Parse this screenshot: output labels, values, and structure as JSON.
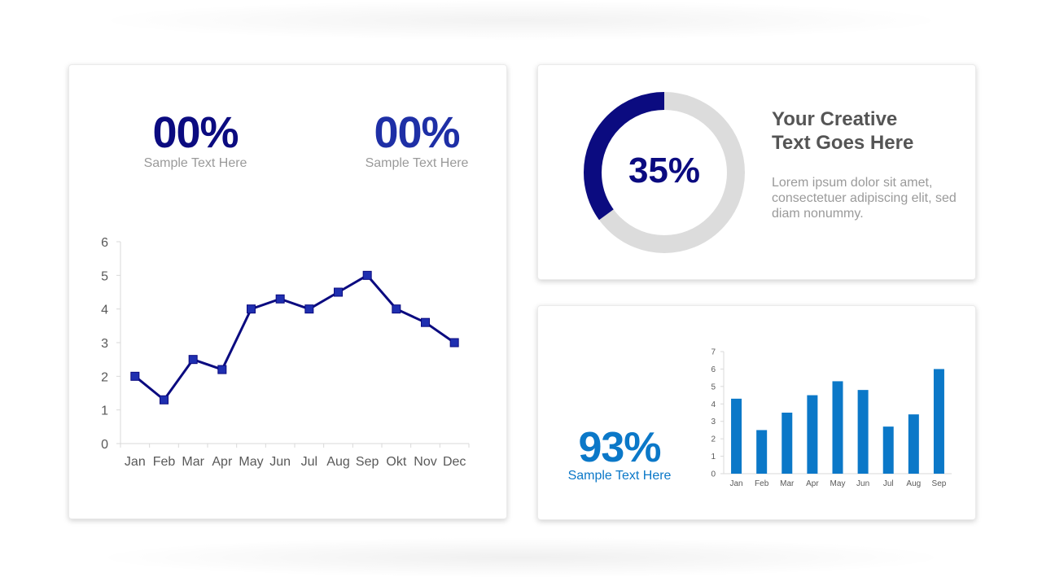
{
  "colors": {
    "navy": "#0b0b80",
    "royal": "#1e2fa6",
    "line": "#0b0b80",
    "marker": "#1f2fb0",
    "bar": "#0b78c8",
    "donut_track": "#dcdcdc",
    "headline": "#555555",
    "muted": "#9a9a9a",
    "axis_text": "#595959"
  },
  "stats": {
    "left_1": {
      "value": "00%",
      "label": "Sample Text Here"
    },
    "left_2": {
      "value": "00%",
      "label": "Sample Text Here"
    },
    "bar_stat": {
      "value": "93%",
      "label": "Sample Text Here"
    }
  },
  "donut": {
    "value_text": "35%",
    "headline_line1": "Your Creative",
    "headline_line2": "Text Goes Here",
    "description": "Lorem ipsum dolor sit amet, consectetuer adipiscing elit, sed diam nonummy."
  },
  "chart_data": [
    {
      "type": "line",
      "categories": [
        "Jan",
        "Feb",
        "Mar",
        "Apr",
        "May",
        "Jun",
        "Jul",
        "Aug",
        "Sep",
        "Okt",
        "Nov",
        "Dec"
      ],
      "values": [
        2,
        1.3,
        2.5,
        2.2,
        4,
        4.3,
        4,
        4.5,
        5,
        4,
        3.6,
        3
      ],
      "ylim": [
        0,
        6
      ],
      "yticks": [
        0,
        1,
        2,
        3,
        4,
        5,
        6
      ],
      "markers": "square",
      "grid": false
    },
    {
      "type": "pie",
      "variant": "donut",
      "values": [
        35,
        65
      ]
    },
    {
      "type": "bar",
      "categories": [
        "Jan",
        "Feb",
        "Mar",
        "Apr",
        "May",
        "Jun",
        "Jul",
        "Aug",
        "Sep"
      ],
      "values": [
        4.3,
        2.5,
        3.5,
        4.5,
        5.3,
        4.8,
        2.7,
        3.4,
        6
      ],
      "ylim": [
        0,
        7
      ],
      "yticks": [
        0,
        1,
        2,
        3,
        4,
        5,
        6,
        7
      ],
      "grid": false
    }
  ]
}
